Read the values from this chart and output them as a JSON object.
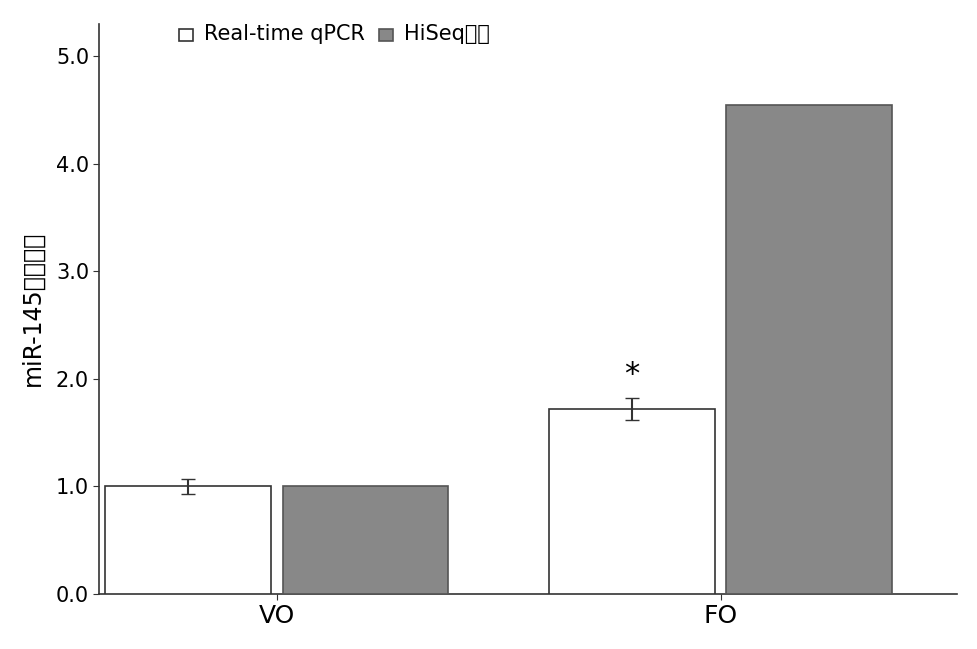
{
  "groups": [
    "VO",
    "FO"
  ],
  "series": [
    "Real-time qPCR",
    "HiSeq测序"
  ],
  "values": {
    "Real-time qPCR": [
      1.0,
      1.72
    ],
    "HiSeq测序": [
      1.0,
      4.55
    ]
  },
  "errors": {
    "Real-time qPCR": [
      0.07,
      0.1
    ],
    "HiSeq测序": [
      0.0,
      0.0
    ]
  },
  "bar_colors": {
    "Real-time qPCR": "#ffffff",
    "HiSeq测序": "#888888"
  },
  "bar_edgecolors": {
    "Real-time qPCR": "#333333",
    "HiSeq测序": "#555555"
  },
  "ylabel": "miR-145的表达量",
  "ylim": [
    0,
    5.3
  ],
  "yticks": [
    0.0,
    1.0,
    2.0,
    3.0,
    4.0,
    5.0
  ],
  "ytick_labels": [
    "0.0",
    "1.0",
    "2.0",
    "3.0",
    "4.0",
    "5.0"
  ],
  "background_color": "#ffffff",
  "bar_width": 0.28,
  "legend_fontsize": 15,
  "ylabel_fontsize": 17,
  "tick_fontsize": 15,
  "xlabel_fontsize": 18,
  "asterisk_fontsize": 22,
  "error_capsize": 5,
  "error_linewidth": 1.5,
  "error_color": "#333333"
}
